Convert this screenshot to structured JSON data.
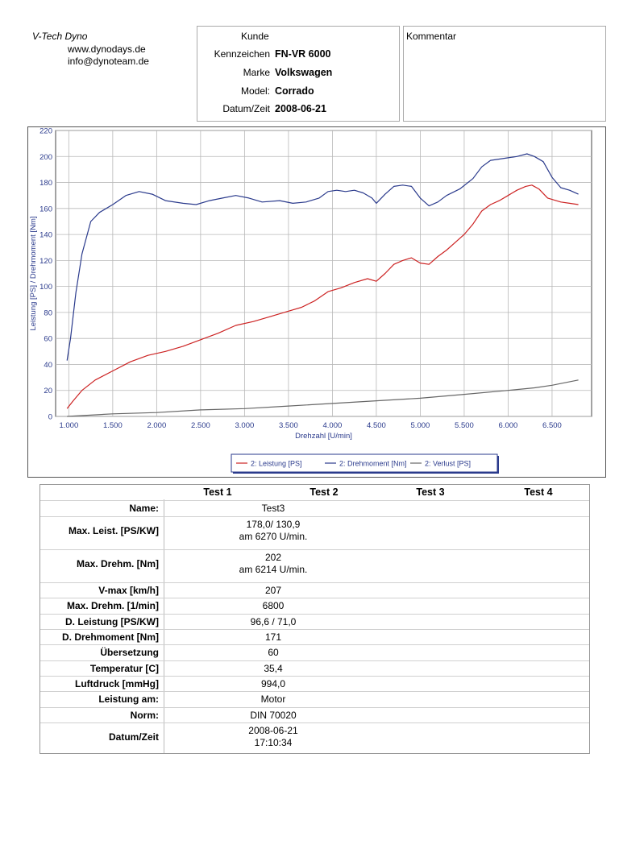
{
  "company": {
    "name": "V-Tech Dyno",
    "url": "www.dynodays.de",
    "email": "info@dynoteam.de"
  },
  "customer": {
    "title": "Kunde",
    "fields": [
      {
        "label": "Kennzeichen",
        "value": "FN-VR 6000"
      },
      {
        "label": "Marke",
        "value": "Volkswagen"
      },
      {
        "label": "Model:",
        "value": "Corrado"
      },
      {
        "label": "Datum/Zeit",
        "value": "2008-06-21"
      }
    ]
  },
  "comment": {
    "label": "Kommentar"
  },
  "chart_data": {
    "type": "line",
    "title": "",
    "xlabel": "Drehzahl [U/min]",
    "ylabel": "Leistung [PS] / Drehmoment [Nm]",
    "xlim": [
      850,
      6950
    ],
    "ylim": [
      0,
      220
    ],
    "x_ticks": [
      1000,
      1500,
      2000,
      2500,
      3000,
      3500,
      4000,
      4500,
      5000,
      5500,
      6000,
      6500
    ],
    "x_tick_labels": [
      "1.000",
      "1.500",
      "2.000",
      "2.500",
      "3.000",
      "3.500",
      "4.000",
      "4.500",
      "5.000",
      "5.500",
      "6.000",
      "6.500"
    ],
    "y_ticks": [
      0,
      20,
      40,
      60,
      80,
      100,
      120,
      140,
      160,
      180,
      200,
      220
    ],
    "y_tick_labels": [
      "0",
      "20",
      "40",
      "60",
      "80",
      "100",
      "120",
      "140",
      "160",
      "180",
      "200",
      "220"
    ],
    "grid": true,
    "legend_position": "bottom-right",
    "series": [
      {
        "name": "2: Leistung [PS]",
        "color": "#cc2222",
        "x": [
          980,
          1050,
          1150,
          1300,
          1500,
          1700,
          1900,
          2100,
          2300,
          2500,
          2700,
          2900,
          3100,
          3300,
          3500,
          3650,
          3800,
          3950,
          4100,
          4250,
          4400,
          4500,
          4600,
          4700,
          4800,
          4900,
          5000,
          5100,
          5200,
          5300,
          5400,
          5500,
          5600,
          5700,
          5800,
          5900,
          6000,
          6100,
          6200,
          6270,
          6350,
          6450,
          6600,
          6700,
          6800
        ],
        "y": [
          6,
          12,
          20,
          28,
          35,
          42,
          47,
          50,
          54,
          59,
          64,
          70,
          73,
          77,
          81,
          84,
          89,
          96,
          99,
          103,
          106,
          104,
          110,
          117,
          120,
          122,
          118,
          117,
          123,
          128,
          134,
          140,
          148,
          158,
          163,
          166,
          170,
          174,
          177,
          178,
          175,
          168,
          165,
          164,
          163
        ]
      },
      {
        "name": "2: Drehmoment [Nm]",
        "color": "#2a3a8c",
        "x": [
          980,
          1020,
          1080,
          1150,
          1250,
          1350,
          1500,
          1650,
          1800,
          1950,
          2100,
          2300,
          2450,
          2600,
          2750,
          2900,
          3050,
          3200,
          3400,
          3550,
          3700,
          3850,
          3950,
          4050,
          4150,
          4250,
          4350,
          4450,
          4500,
          4600,
          4700,
          4800,
          4900,
          5000,
          5100,
          5200,
          5300,
          5450,
          5600,
          5700,
          5800,
          5900,
          6000,
          6100,
          6214,
          6300,
          6400,
          6500,
          6600,
          6700,
          6800
        ],
        "y": [
          43,
          60,
          95,
          125,
          150,
          157,
          163,
          170,
          173,
          171,
          166,
          164,
          163,
          166,
          168,
          170,
          168,
          165,
          166,
          164,
          165,
          168,
          173,
          174,
          173,
          174,
          172,
          168,
          164,
          171,
          177,
          178,
          177,
          168,
          162,
          165,
          170,
          175,
          183,
          192,
          197,
          198,
          199,
          200,
          202,
          200,
          196,
          184,
          176,
          174,
          171
        ]
      },
      {
        "name": "2: Verlust [PS]",
        "color": "#666666",
        "x": [
          980,
          1500,
          2000,
          2500,
          3000,
          3500,
          4000,
          4500,
          5000,
          5500,
          6000,
          6300,
          6500,
          6800
        ],
        "y": [
          0,
          2,
          3,
          5,
          6,
          8,
          10,
          12,
          14,
          17,
          20,
          22,
          24,
          28
        ]
      }
    ]
  },
  "results": {
    "columns": [
      "Test 1",
      "Test 2",
      "Test 3",
      "Test 4"
    ],
    "rows": [
      {
        "label": "Name:",
        "value": "Test3",
        "value2": ""
      },
      {
        "label": "Max. Leist. [PS/KW]",
        "value": "178,0/ 130,9",
        "value2": "am 6270 U/min."
      },
      {
        "label": "Max. Drehm. [Nm]",
        "value": "202",
        "value2": "am 6214 U/min."
      },
      {
        "label": "V-max [km/h]",
        "value": "207",
        "value2": ""
      },
      {
        "label": "Max. Drehm. [1/min]",
        "value": "6800",
        "value2": ""
      },
      {
        "label": "D. Leistung [PS/KW]",
        "value": "96,6 / 71,0",
        "value2": ""
      },
      {
        "label": "D. Drehmoment [Nm]",
        "value": "171",
        "value2": ""
      },
      {
        "label": "Übersetzung",
        "value": "60",
        "value2": ""
      },
      {
        "label": "Temperatur [C]",
        "value": "35,4",
        "value2": ""
      },
      {
        "label": "Luftdruck [mmHg]",
        "value": "994,0",
        "value2": ""
      },
      {
        "label": "Leistung am:",
        "value": "Motor",
        "value2": ""
      },
      {
        "label": "Norm:",
        "value": "DIN 70020",
        "value2": ""
      },
      {
        "label": "Datum/Zeit",
        "value": "2008-06-21",
        "value2": "17:10:34"
      }
    ]
  }
}
